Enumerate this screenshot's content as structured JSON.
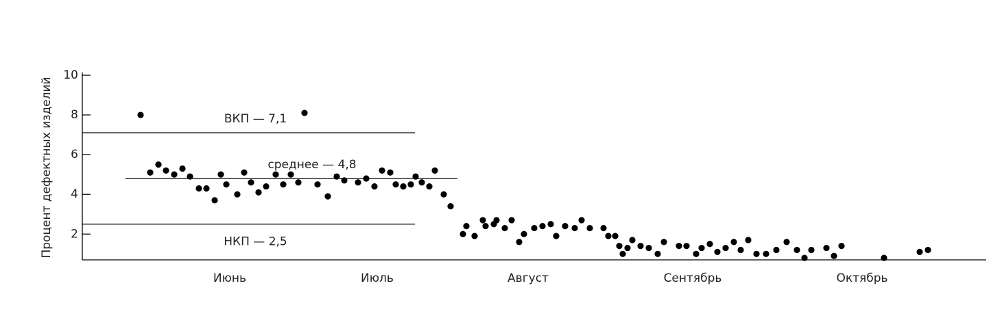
{
  "chart_data": {
    "type": "scatter",
    "ylabel": "Процент дефектных изделий",
    "color": "#000000",
    "xlim": [
      0,
      1318
    ],
    "ylim": [
      0.7,
      10
    ],
    "yticks": [
      2,
      4,
      6,
      8,
      10
    ],
    "xticks": [
      {
        "value": 215,
        "label": "Июнь"
      },
      {
        "value": 430,
        "label": "Июль"
      },
      {
        "value": 650,
        "label": "Август"
      },
      {
        "value": 890,
        "label": "Сентябрь"
      },
      {
        "value": 1137,
        "label": "Октябрь"
      }
    ],
    "reference_lines": [
      {
        "label": "ВКП — 7,1",
        "value": 7.1,
        "x_range": [
          0,
          485
        ],
        "label_side": "above"
      },
      {
        "label": "среднее — 4,8",
        "value": 4.8,
        "x_range": [
          63,
          547
        ],
        "label_side": "above"
      },
      {
        "label": "НКП — 2,5",
        "value": 2.5,
        "x_range": [
          0,
          485
        ],
        "label_side": "below"
      }
    ],
    "x": [
      85,
      99,
      111,
      122,
      134,
      146,
      157,
      170,
      181,
      193,
      202,
      210,
      226,
      236,
      246,
      257,
      268,
      282,
      293,
      304,
      315,
      324,
      343,
      358,
      371,
      382,
      402,
      414,
      426,
      437,
      449,
      457,
      468,
      479,
      486,
      495,
      506,
      514,
      527,
      537,
      555,
      560,
      572,
      584,
      588,
      600,
      604,
      616,
      626,
      637,
      644,
      659,
      671,
      683,
      691,
      704,
      718,
      728,
      740,
      760,
      767,
      777,
      783,
      788,
      795,
      802,
      814,
      826,
      839,
      848,
      870,
      881,
      895,
      903,
      915,
      926,
      938,
      950,
      960,
      971,
      983,
      997,
      1012,
      1027,
      1042,
      1053,
      1063,
      1085,
      1096,
      1107,
      1169,
      1221,
      1233
    ],
    "values": [
      8.0,
      5.1,
      5.5,
      5.2,
      5.0,
      5.3,
      4.9,
      4.3,
      4.3,
      3.7,
      5.0,
      4.5,
      4.0,
      5.1,
      4.6,
      4.1,
      4.4,
      5.0,
      4.5,
      5.0,
      4.6,
      8.1,
      4.5,
      3.9,
      4.9,
      4.7,
      4.6,
      4.8,
      4.4,
      5.2,
      5.1,
      4.5,
      4.4,
      4.5,
      4.9,
      4.6,
      4.4,
      5.2,
      4.0,
      3.4,
      2.0,
      2.4,
      1.9,
      2.7,
      2.4,
      2.5,
      2.7,
      2.3,
      2.7,
      1.6,
      2.0,
      2.3,
      2.4,
      2.5,
      1.9,
      2.4,
      2.3,
      2.7,
      2.3,
      2.3,
      1.9,
      1.9,
      1.4,
      1.0,
      1.3,
      1.7,
      1.4,
      1.3,
      1.0,
      1.6,
      1.4,
      1.4,
      1.0,
      1.3,
      1.5,
      1.1,
      1.3,
      1.6,
      1.2,
      1.7,
      1.0,
      1.0,
      1.2,
      1.6,
      1.2,
      0.8,
      1.2,
      1.3,
      0.9,
      1.4,
      0.8,
      1.1,
      1.2
    ]
  }
}
